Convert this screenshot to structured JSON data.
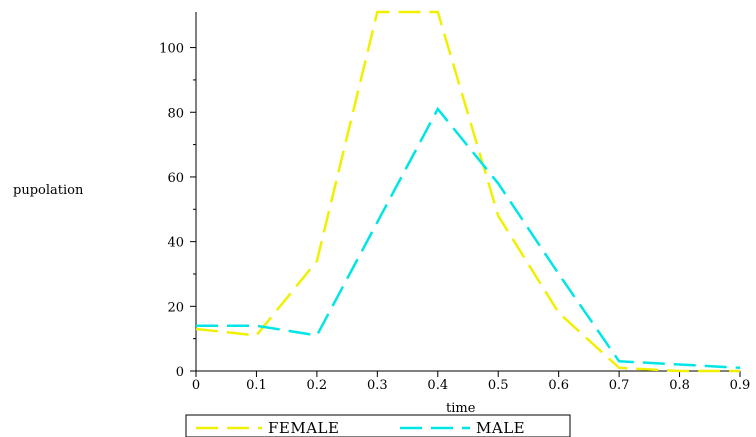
{
  "chart_data": {
    "type": "line",
    "xlabel": "time",
    "ylabel": "pupolation",
    "xlim": [
      0,
      0.9
    ],
    "ylim": [
      0,
      111
    ],
    "x_ticks": [
      "0",
      "0.1",
      "0.2",
      "0.3",
      "0.4",
      "0.5",
      "0.6",
      "0.7",
      "0.8",
      "0.9"
    ],
    "y_ticks": [
      "0",
      "20",
      "40",
      "60",
      "80",
      "100"
    ],
    "grid": false,
    "legend_position": "bottom",
    "series": [
      {
        "name": "FEMALE",
        "color": "#f0f000",
        "line_style": "dashed",
        "x": [
          0,
          0.1,
          0.2,
          0.3,
          0.4,
          0.5,
          0.6,
          0.7,
          0.8,
          0.9
        ],
        "y": [
          13,
          11,
          34,
          111,
          111,
          48,
          18,
          1,
          0,
          0
        ]
      },
      {
        "name": "MALE",
        "color": "#00e5e5",
        "line_style": "dashed",
        "x": [
          0,
          0.1,
          0.2,
          0.3,
          0.4,
          0.5,
          0.6,
          0.7,
          0.8,
          0.9
        ],
        "y": [
          14,
          14,
          11,
          46,
          81,
          58,
          30,
          3,
          2,
          1
        ]
      }
    ]
  }
}
